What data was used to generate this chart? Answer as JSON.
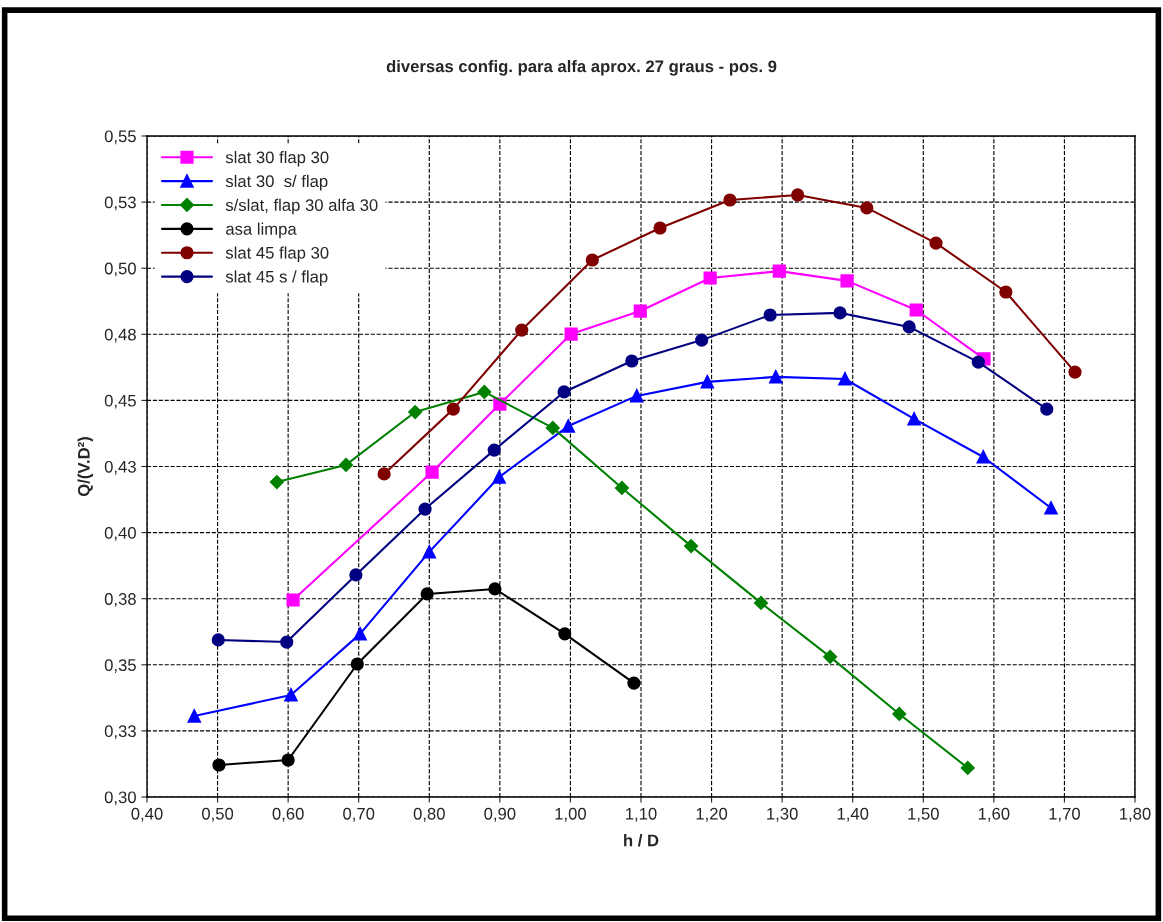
{
  "chart_data": {
    "type": "line",
    "title": "diversas config. para alfa aprox. 27 graus - pos. 9",
    "xlabel": "h / D",
    "ylabel": "Q/(V.D²)",
    "xlim": [
      0.4,
      1.8
    ],
    "ylim": [
      0.3,
      0.55
    ],
    "xticks": [
      {
        "value": 0.4,
        "label": "0,40"
      },
      {
        "value": 0.5,
        "label": "0,50"
      },
      {
        "value": 0.6,
        "label": "0,60"
      },
      {
        "value": 0.7,
        "label": "0,70"
      },
      {
        "value": 0.8,
        "label": "0,80"
      },
      {
        "value": 0.9,
        "label": "0,90"
      },
      {
        "value": 1.0,
        "label": "1,00"
      },
      {
        "value": 1.1,
        "label": "1,10"
      },
      {
        "value": 1.2,
        "label": "1,20"
      },
      {
        "value": 1.3,
        "label": "1,30"
      },
      {
        "value": 1.4,
        "label": "1,40"
      },
      {
        "value": 1.5,
        "label": "1,50"
      },
      {
        "value": 1.6,
        "label": "1,60"
      },
      {
        "value": 1.7,
        "label": "1,70"
      },
      {
        "value": 1.8,
        "label": "1,80"
      }
    ],
    "yticks": [
      {
        "value": 0.3,
        "label": "0,30"
      },
      {
        "value": 0.325,
        "label": "0,33"
      },
      {
        "value": 0.35,
        "label": "0,35"
      },
      {
        "value": 0.375,
        "label": "0,38"
      },
      {
        "value": 0.4,
        "label": "0,40"
      },
      {
        "value": 0.425,
        "label": "0,43"
      },
      {
        "value": 0.45,
        "label": "0,45"
      },
      {
        "value": 0.475,
        "label": "0,48"
      },
      {
        "value": 0.5,
        "label": "0,50"
      },
      {
        "value": 0.525,
        "label": "0,53"
      },
      {
        "value": 0.55,
        "label": "0,55"
      }
    ],
    "grid": true,
    "legend": "top left",
    "line_style": "solid",
    "series": [
      {
        "name": "slat 30 flap 30",
        "color": "#ff00ff",
        "marker": "square",
        "x": [
          0.607,
          0.804,
          0.9,
          1.001,
          1.099,
          1.198,
          1.296,
          1.392,
          1.49,
          1.586
        ],
        "values": [
          0.3745,
          0.4229,
          0.4486,
          0.4751,
          0.4838,
          0.4963,
          0.4989,
          0.4952,
          0.4842,
          0.4657
        ]
      },
      {
        "name": "slat 30  s/ flap",
        "color": "#0000ff",
        "marker": "triangle",
        "x": [
          0.467,
          0.604,
          0.702,
          0.8,
          0.899,
          0.997,
          1.094,
          1.194,
          1.291,
          1.389,
          1.487,
          1.585,
          1.681
        ],
        "values": [
          0.3306,
          0.3386,
          0.3617,
          0.3927,
          0.421,
          0.4403,
          0.4517,
          0.457,
          0.4589,
          0.4581,
          0.443,
          0.4286,
          0.4093
        ]
      },
      {
        "name": "s/slat, flap 30 alfa 30",
        "color": "#008000",
        "marker": "diamond",
        "x": [
          0.584,
          0.682,
          0.78,
          0.878,
          0.975,
          1.073,
          1.171,
          1.27,
          1.368,
          1.466,
          1.563
        ],
        "values": [
          0.4191,
          0.4256,
          0.4456,
          0.4532,
          0.4396,
          0.4169,
          0.3949,
          0.3734,
          0.353,
          0.3314,
          0.311
        ]
      },
      {
        "name": "asa limpa",
        "color": "#000000",
        "marker": "circle",
        "x": [
          0.502,
          0.6,
          0.698,
          0.797,
          0.893,
          0.992,
          1.09
        ],
        "values": [
          0.3121,
          0.314,
          0.3503,
          0.3768,
          0.3787,
          0.3617,
          0.3431
        ]
      },
      {
        "name": "slat 45 flap 30",
        "color": "#800000",
        "marker": "circle",
        "x": [
          0.736,
          0.834,
          0.931,
          1.031,
          1.127,
          1.226,
          1.322,
          1.42,
          1.518,
          1.617,
          1.715
        ],
        "values": [
          0.4222,
          0.4467,
          0.4766,
          0.5031,
          0.5152,
          0.5258,
          0.5277,
          0.5228,
          0.5095,
          0.491,
          0.4607
        ]
      },
      {
        "name": "slat 45 s / flap",
        "color": "#000080",
        "marker": "circle",
        "x": [
          0.501,
          0.598,
          0.696,
          0.794,
          0.892,
          0.991,
          1.087,
          1.186,
          1.283,
          1.382,
          1.48,
          1.578,
          1.675
        ],
        "values": [
          0.3594,
          0.3586,
          0.384,
          0.4089,
          0.4312,
          0.4532,
          0.4649,
          0.4728,
          0.4823,
          0.4831,
          0.4778,
          0.4645,
          0.4467
        ]
      }
    ]
  }
}
